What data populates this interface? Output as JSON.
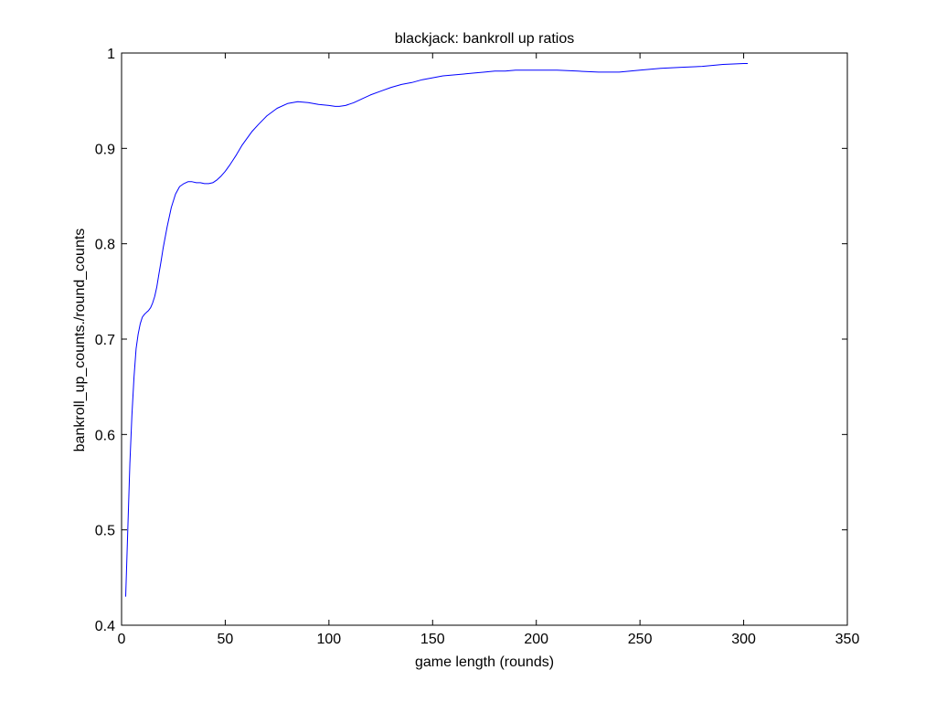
{
  "chart_data": {
    "type": "line",
    "title": "blackjack: bankroll up ratios",
    "xlabel": "game length (rounds)",
    "ylabel": "bankroll_up_counts./round_counts",
    "xlim": [
      0,
      350
    ],
    "ylim": [
      0.4,
      1
    ],
    "xticks": [
      0,
      50,
      100,
      150,
      200,
      250,
      300,
      350
    ],
    "yticks": [
      0.4,
      0.5,
      0.6,
      0.7,
      0.8,
      0.9,
      1
    ],
    "xtick_labels": [
      "0",
      "50",
      "100",
      "150",
      "200",
      "250",
      "300",
      "350"
    ],
    "ytick_labels": [
      "0.4",
      "0.5",
      "0.6",
      "0.7",
      "0.8",
      "0.9",
      "1"
    ],
    "grid": false,
    "series": [
      {
        "color": "#0000ff",
        "x": [
          2,
          3,
          4,
          5,
          6,
          7,
          8,
          9,
          10,
          11,
          12,
          13,
          14,
          15,
          16,
          17,
          18,
          19,
          20,
          22,
          24,
          26,
          28,
          30,
          32,
          34,
          36,
          38,
          40,
          42,
          44,
          46,
          48,
          50,
          52,
          55,
          58,
          60,
          63,
          66,
          70,
          75,
          80,
          85,
          90,
          95,
          100,
          103,
          105,
          108,
          112,
          116,
          120,
          125,
          130,
          135,
          140,
          145,
          150,
          155,
          160,
          165,
          170,
          175,
          180,
          185,
          190,
          195,
          200,
          210,
          220,
          230,
          235,
          240,
          250,
          260,
          270,
          280,
          290,
          300,
          302
        ],
        "y": [
          0.43,
          0.5,
          0.57,
          0.62,
          0.66,
          0.69,
          0.705,
          0.716,
          0.723,
          0.726,
          0.728,
          0.73,
          0.733,
          0.738,
          0.745,
          0.755,
          0.768,
          0.781,
          0.795,
          0.818,
          0.838,
          0.852,
          0.86,
          0.863,
          0.865,
          0.865,
          0.864,
          0.864,
          0.863,
          0.863,
          0.864,
          0.867,
          0.871,
          0.876,
          0.882,
          0.892,
          0.903,
          0.909,
          0.918,
          0.925,
          0.934,
          0.942,
          0.947,
          0.949,
          0.948,
          0.946,
          0.945,
          0.944,
          0.944,
          0.945,
          0.948,
          0.952,
          0.956,
          0.96,
          0.964,
          0.967,
          0.969,
          0.972,
          0.974,
          0.976,
          0.977,
          0.978,
          0.979,
          0.98,
          0.981,
          0.981,
          0.982,
          0.982,
          0.982,
          0.982,
          0.981,
          0.98,
          0.98,
          0.98,
          0.982,
          0.984,
          0.985,
          0.986,
          0.988,
          0.989,
          0.989
        ]
      }
    ]
  }
}
